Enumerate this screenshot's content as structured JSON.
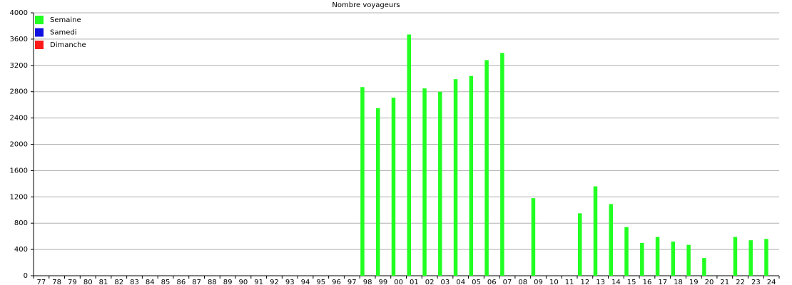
{
  "chart_data": {
    "type": "bar",
    "title": "Nombre voyageurs",
    "categories": [
      "77",
      "78",
      "79",
      "80",
      "81",
      "82",
      "83",
      "84",
      "85",
      "86",
      "87",
      "88",
      "89",
      "90",
      "91",
      "92",
      "93",
      "94",
      "95",
      "96",
      "97",
      "98",
      "99",
      "00",
      "01",
      "02",
      "03",
      "04",
      "05",
      "06",
      "07",
      "08",
      "09",
      "10",
      "11",
      "12",
      "13",
      "14",
      "15",
      "16",
      "17",
      "18",
      "19",
      "20",
      "21",
      "22",
      "23",
      "24"
    ],
    "series": [
      {
        "name": "Semaine",
        "color": "#22ff22",
        "values": [
          null,
          null,
          null,
          null,
          null,
          null,
          null,
          null,
          null,
          null,
          null,
          null,
          null,
          null,
          null,
          null,
          null,
          null,
          null,
          null,
          null,
          2870,
          2550,
          2710,
          3670,
          2850,
          2800,
          2990,
          3040,
          3280,
          3390,
          null,
          1180,
          null,
          null,
          950,
          1360,
          1090,
          740,
          500,
          590,
          520,
          470,
          270,
          null,
          590,
          540,
          560
        ]
      },
      {
        "name": "Samedi",
        "color": "#1010e0",
        "values": [
          null,
          null,
          null,
          null,
          null,
          null,
          null,
          null,
          null,
          null,
          null,
          null,
          null,
          null,
          null,
          null,
          null,
          null,
          null,
          null,
          null,
          null,
          null,
          null,
          null,
          null,
          null,
          null,
          null,
          null,
          null,
          null,
          null,
          null,
          null,
          null,
          null,
          null,
          null,
          null,
          null,
          null,
          null,
          null,
          null,
          null,
          null,
          null
        ]
      },
      {
        "name": "Dimanche",
        "color": "#ff1a1a",
        "values": [
          null,
          null,
          null,
          null,
          null,
          null,
          null,
          null,
          null,
          null,
          null,
          null,
          null,
          null,
          null,
          null,
          null,
          null,
          null,
          null,
          null,
          null,
          null,
          null,
          null,
          null,
          null,
          null,
          null,
          null,
          null,
          null,
          null,
          null,
          null,
          null,
          null,
          null,
          null,
          null,
          null,
          null,
          null,
          null,
          null,
          null,
          null,
          null
        ]
      }
    ],
    "ylim": [
      0,
      4000
    ],
    "yticks": [
      0,
      400,
      800,
      1200,
      1600,
      2000,
      2400,
      2800,
      3200,
      3600,
      4000
    ],
    "grid": true,
    "legend": "upper-left"
  }
}
